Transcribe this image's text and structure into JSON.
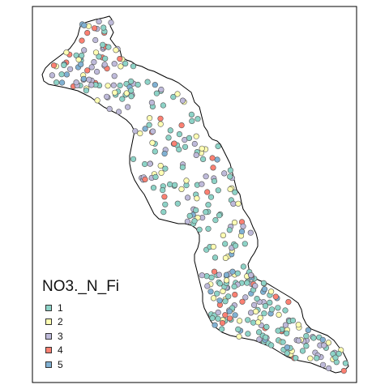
{
  "map": {
    "legend": {
      "title": "NO3._N_Fi",
      "classes": [
        {
          "label": "1",
          "color": "#8DD3C7"
        },
        {
          "label": "2",
          "color": "#FFFFB3"
        },
        {
          "label": "3",
          "color": "#BEBADA"
        },
        {
          "label": "4",
          "color": "#FB8072"
        },
        {
          "label": "5",
          "color": "#80B1D3"
        }
      ]
    },
    "colors": {
      "frame": "#000000",
      "boundary": "#000000",
      "point_stroke": "#555555",
      "background": "#ffffff"
    }
  }
}
